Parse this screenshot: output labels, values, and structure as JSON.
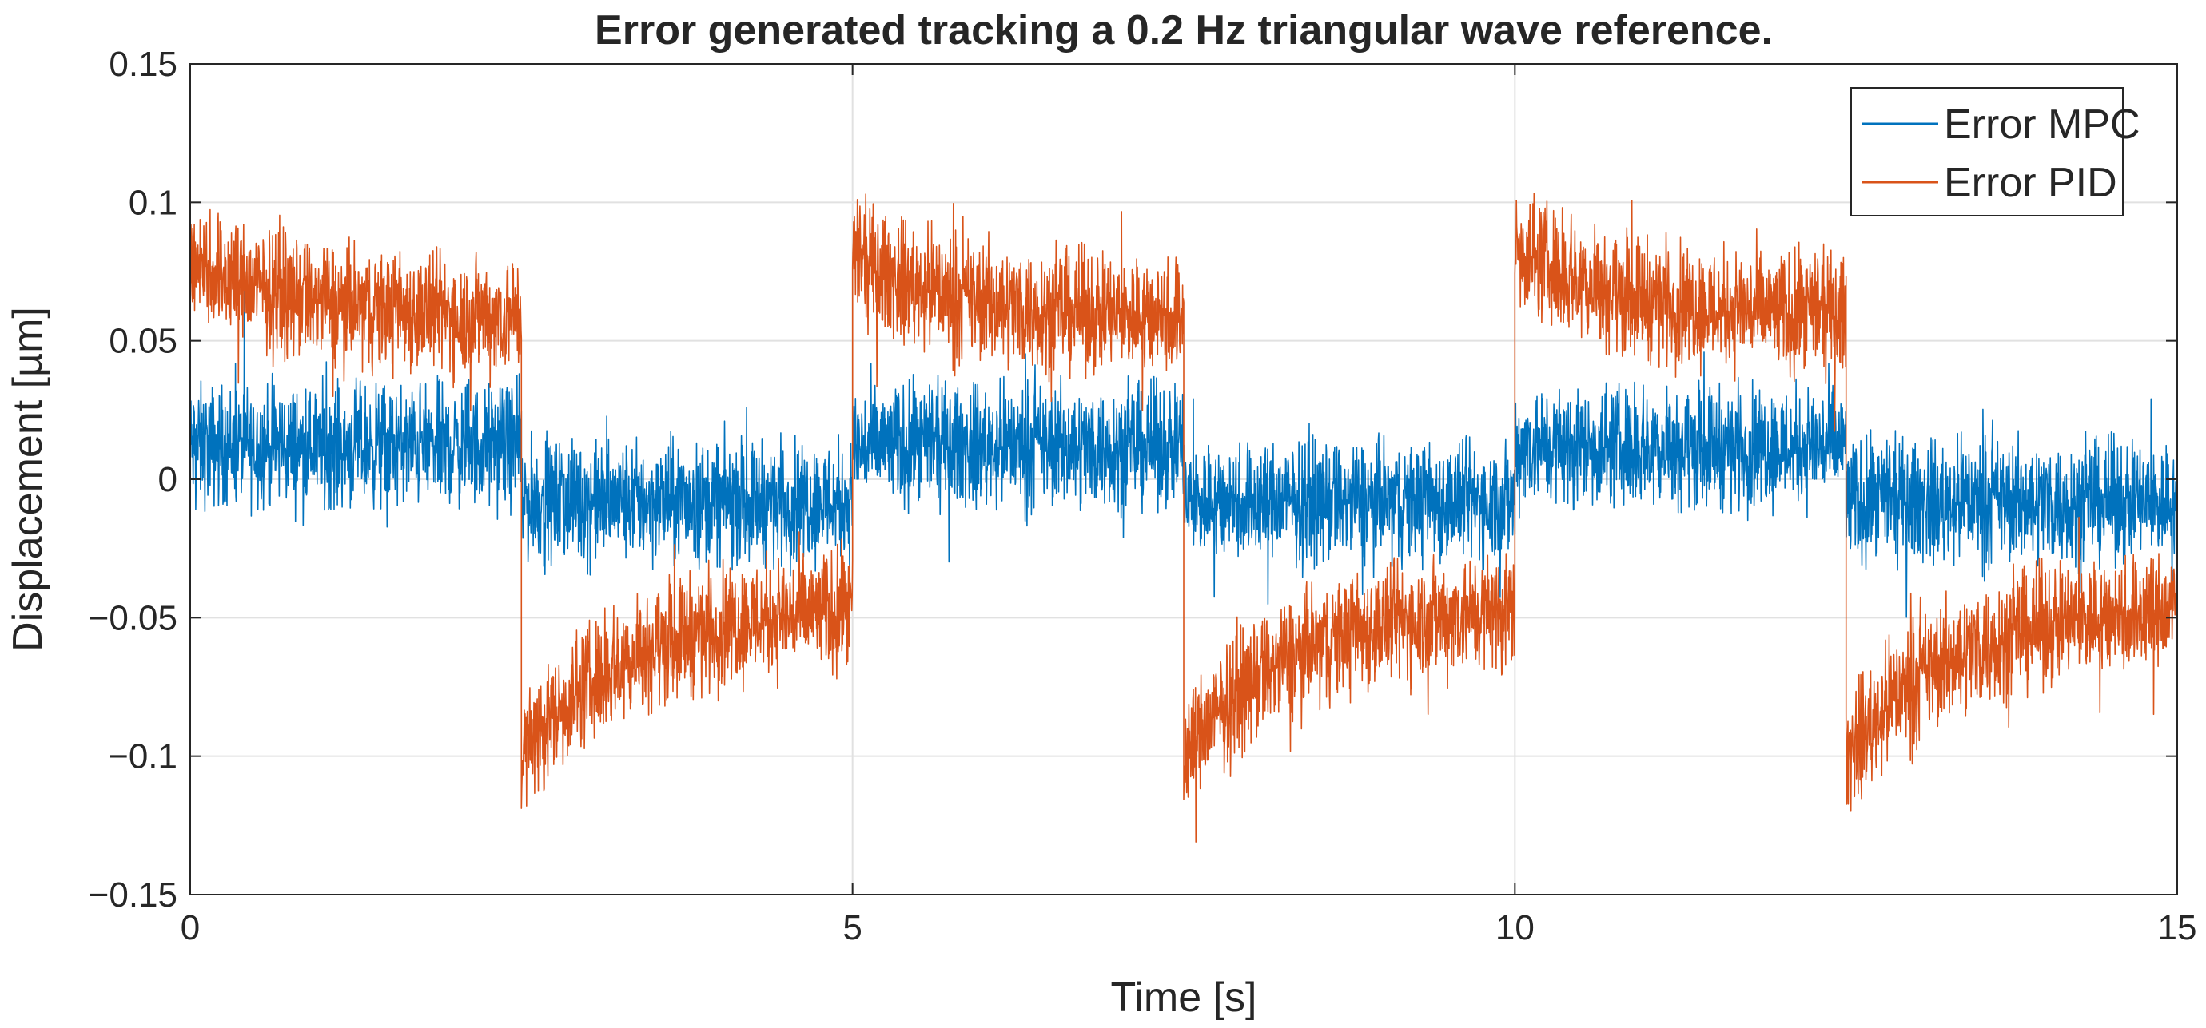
{
  "chart_data": {
    "type": "line",
    "title": "Error generated tracking a 0.2 Hz triangular wave reference.",
    "xlabel": "Time [s]",
    "ylabel": "Displacement [µm]",
    "xlim": [
      0,
      15
    ],
    "ylim": [
      -0.15,
      0.15
    ],
    "grid": true,
    "legend_position": "top-right",
    "x_ticks": [
      0,
      5,
      10,
      15
    ],
    "x_tick_labels": [
      "0",
      "5",
      "10",
      "15"
    ],
    "y_ticks": [
      0.15,
      0.1,
      0.05,
      0,
      -0.05,
      -0.1,
      -0.15
    ],
    "y_tick_labels": [
      "0.15",
      "0.1",
      "0.05",
      "0",
      "−0.05",
      "−0.1",
      "−0.15"
    ],
    "series": [
      {
        "name": "Error MPC",
        "color": "#0072BD",
        "segments": [
          {
            "t_start": 0.0,
            "t_end": 2.5,
            "mean": 0.012,
            "noise_band": 0.045
          },
          {
            "t_start": 2.5,
            "t_end": 5.0,
            "mean": -0.008,
            "noise_band": 0.045
          },
          {
            "t_start": 5.0,
            "t_end": 7.5,
            "mean": 0.012,
            "noise_band": 0.045
          },
          {
            "t_start": 7.5,
            "t_end": 10.0,
            "mean": -0.008,
            "noise_band": 0.045
          },
          {
            "t_start": 10.0,
            "t_end": 12.5,
            "mean": 0.012,
            "noise_band": 0.045
          },
          {
            "t_start": 12.5,
            "t_end": 15.0,
            "mean": -0.008,
            "noise_band": 0.045
          }
        ]
      },
      {
        "name": "Error PID",
        "color": "#D95319",
        "segments": [
          {
            "t_start": 0.0,
            "t_end": 2.5,
            "start_value": 0.08,
            "end_value": 0.058,
            "noise_band": 0.045
          },
          {
            "t_start": 2.5,
            "t_end": 5.0,
            "start_value": -0.1,
            "end_value": -0.045,
            "noise_band": 0.045
          },
          {
            "t_start": 5.0,
            "t_end": 7.5,
            "start_value": 0.08,
            "end_value": 0.058,
            "noise_band": 0.045
          },
          {
            "t_start": 7.5,
            "t_end": 10.0,
            "start_value": -0.1,
            "end_value": -0.045,
            "noise_band": 0.045
          },
          {
            "t_start": 10.0,
            "t_end": 12.5,
            "start_value": 0.085,
            "end_value": 0.058,
            "noise_band": 0.045
          },
          {
            "t_start": 12.5,
            "t_end": 15.0,
            "start_value": -0.1,
            "end_value": -0.045,
            "noise_band": 0.045
          }
        ]
      }
    ]
  }
}
